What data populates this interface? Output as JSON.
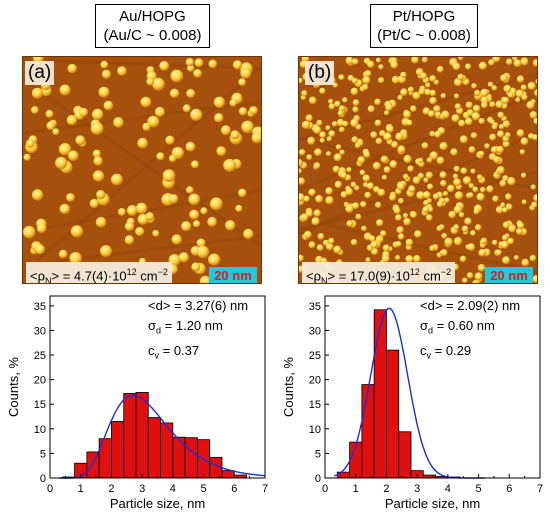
{
  "panels": [
    {
      "title_line1": "Au/HOPG",
      "title_line2": "(Au/C ~ 0.008)",
      "label": "(a)",
      "density_prefix": "<ρ",
      "density_sub": "N",
      "density_mid": "> = 4.7(4)·10",
      "density_exp": "12",
      "density_unit": " cm",
      "density_unit_exp": "−2",
      "scale_bar": "20 nm",
      "stats": {
        "d_label": "<d> = 3.27(6) nm",
        "sigma_sym": "σ",
        "sigma_sub": "d",
        "sigma_val": " =  1.20 nm",
        "cv_sym": "c",
        "cv_sub": "v",
        "cv_val": " = 0.37"
      }
    },
    {
      "title_line1": "Pt/HOPG",
      "title_line2": "(Pt/C ~ 0.008)",
      "label": "(b)",
      "density_prefix": "<ρ",
      "density_sub": "N",
      "density_mid": "> = 17.0(9)·10",
      "density_exp": "12",
      "density_unit": " cm",
      "density_unit_exp": "−2",
      "scale_bar": "20 nm",
      "stats": {
        "d_label": "<d> = 2.09(2) nm",
        "sigma_sym": "σ",
        "sigma_sub": "d",
        "sigma_val": " = 0.60 nm",
        "cv_sym": "c",
        "cv_sub": "v",
        "cv_val": " = 0.29"
      }
    }
  ],
  "colors": {
    "bar": "#e01010",
    "fit": "#1a2fd6",
    "stm_bg": "#a5500c",
    "stm_particle": "#ffd23a"
  },
  "chart_data": [
    {
      "type": "bar",
      "xlabel": "Particle size, nm",
      "ylabel": "Counts, %",
      "xlim": [
        0,
        7
      ],
      "ylim": [
        0,
        37
      ],
      "xticks": [
        0,
        1,
        2,
        3,
        4,
        5,
        6,
        7
      ],
      "yticks": [
        0,
        5,
        10,
        15,
        20,
        25,
        30,
        35
      ],
      "bin_width": 0.4,
      "bin_centers": [
        0.6,
        1.0,
        1.4,
        1.8,
        2.2,
        2.6,
        3.0,
        3.4,
        3.8,
        4.2,
        4.6,
        5.0,
        5.4,
        5.8,
        6.2,
        6.6
      ],
      "values": [
        0.2,
        3.0,
        5.3,
        8.0,
        11.5,
        17.2,
        17.4,
        12.3,
        11.2,
        8.3,
        8.2,
        7.8,
        4.2,
        1.5,
        0.6,
        0.0
      ],
      "fit": {
        "type": "lognormal",
        "mean": 3.27,
        "sigma": 1.2,
        "peak": 16.8
      }
    },
    {
      "type": "bar",
      "xlabel": "Particle size, nm",
      "ylabel": "Counts, %",
      "xlim": [
        0,
        7
      ],
      "ylim": [
        0,
        37
      ],
      "xticks": [
        0,
        1,
        2,
        3,
        4,
        5,
        6,
        7
      ],
      "yticks": [
        0,
        5,
        10,
        15,
        20,
        25,
        30,
        35
      ],
      "bin_width": 0.4,
      "bin_centers": [
        0.6,
        1.0,
        1.4,
        1.8,
        2.2,
        2.6,
        3.0,
        3.4,
        3.8,
        4.2,
        4.6
      ],
      "values": [
        1.2,
        7.3,
        19.0,
        34.2,
        26.0,
        9.4,
        1.5,
        0.6,
        0.3,
        0.2,
        0.0
      ],
      "fit": {
        "type": "gauss",
        "mean": 2.09,
        "sigma": 0.6,
        "peak": 34.5
      }
    }
  ]
}
